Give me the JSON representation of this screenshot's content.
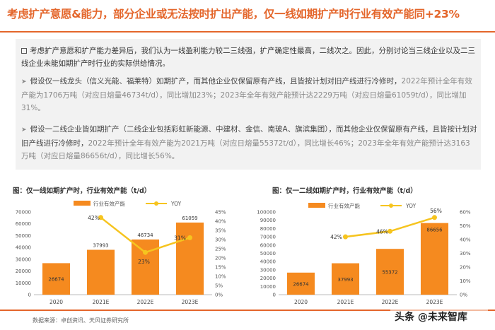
{
  "title": "考虑扩产意愿&能力，部分企业或无法按时扩出产能，仅一线如期扩产时行业有效产能同+23%",
  "intro": "考虑扩产意愿和扩产能力差异后，我们认为一线盈利能力较二三线强，扩产确定性最高，二线次之。因此，分别讨论当三线企业以及二三线企业未能如期扩产时行业的实际供给情况。",
  "bullet1": {
    "a": "假设仅一线龙头（信义光能、福莱特）如期扩产，而其他企业仅保留原有产线，且皆按计划对旧产线进行冷修时，",
    "b": "2022年预计全年有效产能为1706万吨（对应日熔量46734t/d），同比增加23%；2023年全年有效产能预计达2229万吨（对应日熔量61059t/d），同比增加31%。"
  },
  "bullet2": {
    "a": "假设一二线企业皆如期扩产（二线企业包括彩虹新能源、中建材、金信、南玻A、旗滨集团），而其他企业仅保留原有产线，且皆按计划对旧产线进行冷修时，",
    "b": "2022年预计全年有效产能为2021万吨（对应日熔量55372t/d），同比增长46%；2023年全年有效产能预计达3163万吨（对应日熔量86656t/d），同比增长56%。"
  },
  "source": "数据来源：卓创资讯、天风证券研究所",
  "watermark": "头条 @未来智库",
  "colors": {
    "accent": "#e4662b",
    "bar": "#f58a1f",
    "line": "#f6c41f"
  },
  "chart_data": [
    {
      "type": "bar",
      "title": "图：仅一线如期扩产时，行业有效产能（t/d）",
      "categories": [
        "2020",
        "2021E",
        "2022E",
        "2023E"
      ],
      "series": [
        {
          "name": "行业有效产能",
          "type": "bar",
          "axis": "left",
          "values": [
            26674,
            37993,
            46734,
            61059
          ]
        },
        {
          "name": "YOY",
          "type": "line",
          "axis": "right",
          "values": [
            null,
            42,
            23,
            31
          ],
          "labels": [
            "",
            "42%",
            "23%",
            "31%"
          ]
        }
      ],
      "yleft": {
        "ticks": [
          "0",
          "10000",
          "20000",
          "30000",
          "40000",
          "50000",
          "60000",
          "70000"
        ],
        "min": 0,
        "max": 70000
      },
      "yright": {
        "ticks": [
          "0%",
          "5%",
          "10%",
          "15%",
          "20%",
          "25%",
          "30%",
          "35%",
          "40%",
          "45%"
        ],
        "min": 0,
        "max": 45
      },
      "value_labels": [
        "26674",
        "37993",
        "46734",
        "61059"
      ],
      "legend": "top",
      "grid": false
    },
    {
      "type": "bar",
      "title": "图：仅一二线如期扩产时，行业有效产能（t/d）",
      "categories": [
        "2020",
        "2021E",
        "2022E",
        "2023E"
      ],
      "series": [
        {
          "name": "行业有效产能",
          "type": "bar",
          "axis": "left",
          "values": [
            26674,
            37993,
            55372,
            86656
          ]
        },
        {
          "name": "YOY",
          "type": "line",
          "axis": "right",
          "values": [
            null,
            42,
            46,
            56
          ],
          "labels": [
            "",
            "42%",
            "46%",
            "56%"
          ]
        }
      ],
      "yleft": {
        "ticks": [
          "0",
          "10000",
          "20000",
          "30000",
          "40000",
          "50000",
          "60000",
          "70000",
          "80000",
          "90000",
          "100000"
        ],
        "min": 0,
        "max": 100000
      },
      "yright": {
        "ticks": [
          "0%",
          "10%",
          "20%",
          "30%",
          "40%",
          "50%",
          "60%"
        ],
        "min": 0,
        "max": 60
      },
      "value_labels": [
        "26674",
        "37993",
        "55372",
        "86656"
      ],
      "legend": "top",
      "grid": false
    }
  ]
}
